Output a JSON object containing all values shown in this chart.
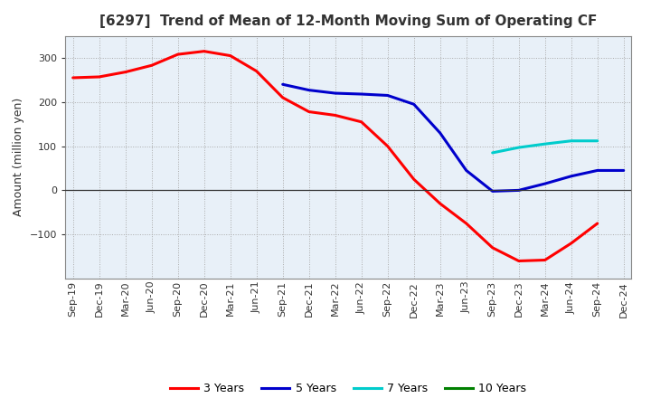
{
  "title": "[6297]  Trend of Mean of 12-Month Moving Sum of Operating CF",
  "ylabel": "Amount (million yen)",
  "background_color": "#ffffff",
  "plot_bg_color": "#e8f0f8",
  "grid_color": "#aaaaaa",
  "title_fontsize": 11,
  "axis_label_fontsize": 9,
  "tick_fontsize": 8,
  "ylim": [
    -200,
    350
  ],
  "yticks": [
    -100,
    0,
    100,
    200,
    300
  ],
  "x_labels": [
    "Sep-19",
    "Dec-19",
    "Mar-20",
    "Jun-20",
    "Sep-20",
    "Dec-20",
    "Mar-21",
    "Jun-21",
    "Sep-21",
    "Dec-21",
    "Mar-22",
    "Jun-22",
    "Sep-22",
    "Dec-22",
    "Mar-23",
    "Jun-23",
    "Sep-23",
    "Dec-23",
    "Mar-24",
    "Jun-24",
    "Sep-24",
    "Dec-24"
  ],
  "series_3yr": {
    "color": "#ff0000",
    "label": "3 Years",
    "values": [
      255,
      257,
      268,
      283,
      308,
      315,
      305,
      270,
      210,
      178,
      170,
      155,
      100,
      25,
      -30,
      -75,
      -130,
      -160,
      -158,
      -120,
      -75,
      null
    ]
  },
  "series_5yr": {
    "color": "#0000cc",
    "label": "5 Years",
    "values": [
      null,
      null,
      null,
      null,
      null,
      null,
      null,
      null,
      240,
      227,
      220,
      218,
      215,
      195,
      130,
      45,
      -2,
      0,
      15,
      32,
      45,
      45
    ]
  },
  "series_7yr": {
    "color": "#00cccc",
    "label": "7 Years",
    "values": [
      null,
      null,
      null,
      null,
      null,
      null,
      null,
      null,
      null,
      null,
      null,
      null,
      null,
      null,
      null,
      null,
      85,
      97,
      105,
      112,
      112,
      null
    ]
  },
  "series_10yr": {
    "color": "#008000",
    "label": "10 Years",
    "values": [
      null,
      null,
      null,
      null,
      null,
      null,
      null,
      null,
      null,
      null,
      null,
      null,
      null,
      null,
      null,
      null,
      null,
      null,
      null,
      null,
      null,
      null
    ]
  },
  "legend_items": [
    {
      "label": "3 Years",
      "color": "#ff0000"
    },
    {
      "label": "5 Years",
      "color": "#0000cc"
    },
    {
      "label": "7 Years",
      "color": "#00cccc"
    },
    {
      "label": "10 Years",
      "color": "#008000"
    }
  ]
}
